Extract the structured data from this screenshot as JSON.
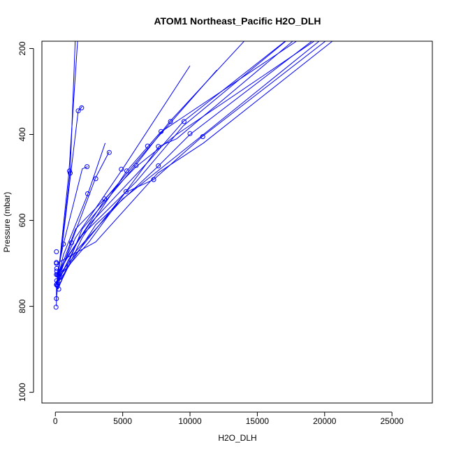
{
  "chart_data": {
    "type": "line",
    "title": "ATOM1 Northeast_Pacific H2O_DLH",
    "xlabel": "H2O_DLH",
    "ylabel": "Pressure (mbar)",
    "xlim": [
      -1000,
      28000
    ],
    "ylim": [
      1025,
      183
    ],
    "y_reversed": true,
    "grid": false,
    "line_color": "#0000ff",
    "x_ticks": [
      0,
      5000,
      10000,
      15000,
      20000,
      25000
    ],
    "x_tick_labels": [
      "0",
      "5000",
      "10000",
      "15000",
      "20000",
      "25000"
    ],
    "y_ticks": [
      200,
      400,
      600,
      800,
      1000
    ],
    "y_tick_labels": [
      "200",
      "400",
      "600",
      "800",
      "1000"
    ],
    "series": [
      {
        "x": [
          1500,
          1100,
          500,
          80,
          80
        ],
        "y": [
          160,
          485,
          655,
          750,
          800
        ]
      },
      {
        "x": [
          1700,
          1000,
          300,
          80
        ],
        "y": [
          160,
          490,
          700,
          785
        ]
      },
      {
        "x": [
          2000,
          1700,
          500,
          100
        ],
        "y": [
          335,
          345,
          660,
          750
        ]
      },
      {
        "x": [
          4000,
          3000,
          1200,
          200
        ],
        "y": [
          440,
          500,
          650,
          740
        ]
      },
      {
        "x": [
          2400,
          2000,
          600,
          100
        ],
        "y": [
          475,
          480,
          655,
          730
        ]
      },
      {
        "x": [
          3700,
          2400,
          600,
          150
        ],
        "y": [
          420,
          540,
          680,
          740
        ]
      },
      {
        "x": [
          10000,
          5000,
          1500,
          200
        ],
        "y": [
          240,
          480,
          640,
          730
        ]
      },
      {
        "x": [
          12000,
          7000,
          3700,
          1000,
          300
        ],
        "y": [
          250,
          428,
          550,
          680,
          720
        ]
      },
      {
        "x": [
          14700,
          8500,
          6000,
          2000,
          200
        ],
        "y": [
          160,
          370,
          470,
          620,
          760
        ]
      },
      {
        "x": [
          18000,
          9500,
          7000,
          2500,
          200
        ],
        "y": [
          160,
          370,
          460,
          610,
          720
        ]
      },
      {
        "x": [
          19000,
          7800,
          5300,
          2000,
          150
        ],
        "y": [
          160,
          395,
          485,
          640,
          760
        ]
      },
      {
        "x": [
          20000,
          10000,
          7600,
          3000,
          300
        ],
        "y": [
          160,
          400,
          475,
          610,
          740
        ]
      },
      {
        "x": [
          21000,
          10900,
          7300,
          5200,
          200
        ],
        "y": [
          160,
          405,
          505,
          535,
          730
        ]
      },
      {
        "x": [
          20300,
          9000,
          6000,
          1500,
          300
        ],
        "y": [
          160,
          400,
          475,
          620,
          720
        ]
      },
      {
        "x": [
          21500,
          11000,
          7600,
          3000,
          100
        ],
        "y": [
          160,
          420,
          490,
          650,
          700
        ]
      },
      {
        "x": [
          18500,
          9000,
          7700,
          2500,
          300
        ],
        "y": [
          160,
          410,
          428,
          650,
          730
        ]
      },
      {
        "x": [
          18000,
          9500,
          6000,
          1800,
          100
        ],
        "y": [
          160,
          380,
          510,
          640,
          750
        ]
      },
      {
        "x": [
          20500,
          11000,
          5000,
          1000,
          300
        ],
        "y": [
          160,
          400,
          550,
          690,
          735
        ]
      }
    ],
    "markers": [
      {
        "x": 80,
        "y": 673
      },
      {
        "x": 80,
        "y": 698
      },
      {
        "x": 80,
        "y": 700
      },
      {
        "x": 100,
        "y": 712
      },
      {
        "x": 100,
        "y": 718
      },
      {
        "x": 80,
        "y": 726
      },
      {
        "x": 150,
        "y": 726
      },
      {
        "x": 200,
        "y": 728
      },
      {
        "x": 300,
        "y": 725
      },
      {
        "x": 350,
        "y": 732
      },
      {
        "x": 100,
        "y": 740
      },
      {
        "x": 120,
        "y": 748
      },
      {
        "x": 80,
        "y": 750
      },
      {
        "x": 150,
        "y": 752
      },
      {
        "x": 250,
        "y": 760
      },
      {
        "x": 80,
        "y": 782
      },
      {
        "x": 50,
        "y": 802
      },
      {
        "x": 300,
        "y": 740
      },
      {
        "x": 200,
        "y": 745
      },
      {
        "x": 600,
        "y": 655
      },
      {
        "x": 1200,
        "y": 652
      },
      {
        "x": 1050,
        "y": 485
      },
      {
        "x": 1100,
        "y": 490
      },
      {
        "x": 1700,
        "y": 345
      },
      {
        "x": 1950,
        "y": 338
      },
      {
        "x": 2350,
        "y": 475
      },
      {
        "x": 2400,
        "y": 538
      },
      {
        "x": 3000,
        "y": 503
      },
      {
        "x": 3650,
        "y": 550
      },
      {
        "x": 4000,
        "y": 442
      },
      {
        "x": 4900,
        "y": 481
      },
      {
        "x": 5300,
        "y": 485
      },
      {
        "x": 5250,
        "y": 533
      },
      {
        "x": 6000,
        "y": 472
      },
      {
        "x": 6850,
        "y": 427
      },
      {
        "x": 7300,
        "y": 505
      },
      {
        "x": 7650,
        "y": 428
      },
      {
        "x": 7650,
        "y": 473
      },
      {
        "x": 7850,
        "y": 393
      },
      {
        "x": 8550,
        "y": 370
      },
      {
        "x": 9550,
        "y": 370
      },
      {
        "x": 10000,
        "y": 398
      },
      {
        "x": 10950,
        "y": 405
      }
    ]
  }
}
